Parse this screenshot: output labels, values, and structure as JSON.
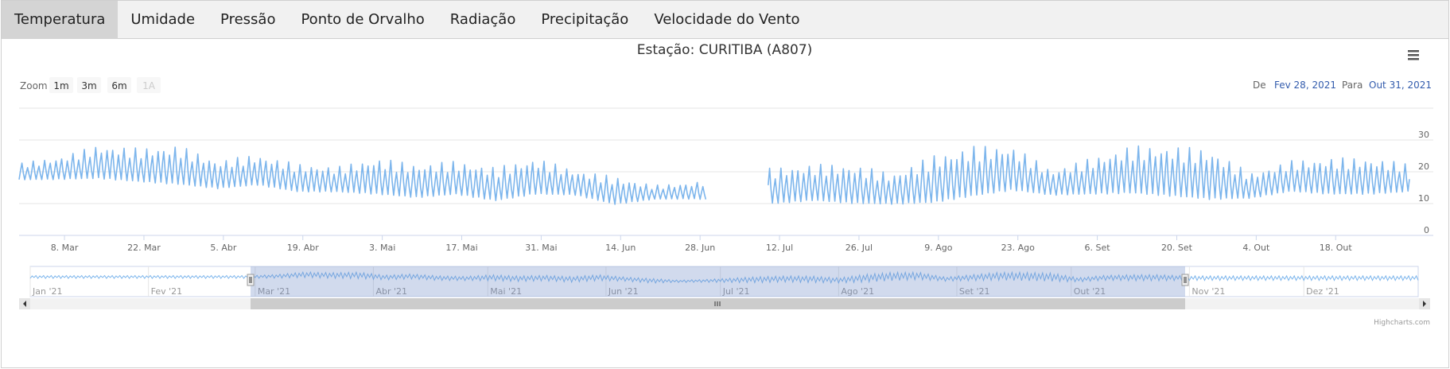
{
  "tabs": [
    "Temperatura",
    "Umidade",
    "Pressão",
    "Ponto de Orvalho",
    "Radiação",
    "Precipitação",
    "Velocidade do Vento"
  ],
  "active_tab": 0,
  "range_selector": {
    "zoom_label": "Zoom",
    "buttons": [
      "1m",
      "3m",
      "6m",
      "1A"
    ],
    "from_label": "De",
    "from_value": "Fev 28, 2021",
    "to_label": "Para",
    "to_value": "Out 31, 2021"
  },
  "credits": "Highcharts.com",
  "colors": {
    "series": "#7cb5ec",
    "navigator_mask": "rgba(102,133,194,0.3)"
  },
  "chart_data": {
    "type": "line",
    "title": "Estação: CURITIBA (A807)",
    "x_ticks": [
      "8. Mar",
      "22. Mar",
      "5. Abr",
      "19. Abr",
      "3. Mai",
      "17. Mai",
      "31. Mai",
      "14. Jun",
      "28. Jun",
      "12. Jul",
      "26. Jul",
      "9. Ago",
      "23. Ago",
      "6. Set",
      "20. Set",
      "4. Out",
      "18. Out"
    ],
    "y_ticks": [
      0,
      10,
      20,
      30
    ],
    "ylim": [
      0,
      40
    ],
    "xlim": [
      "2021-02-28",
      "2021-10-31"
    ],
    "navigator_ticks": [
      "Jan '21",
      "Fev '21",
      "Mar '21",
      "Abr '21",
      "Mai '21",
      "Jun '21",
      "Jul '21",
      "Ago '21",
      "Set '21",
      "Out '21",
      "Nov '21",
      "Dez '21"
    ],
    "gaps": [
      [
        "2021-06-29",
        "2021-07-10"
      ]
    ],
    "series": [
      {
        "x": [
          "2021-02-28",
          "2021-03-07",
          "2021-03-14",
          "2021-03-21",
          "2021-03-28",
          "2021-04-04",
          "2021-04-11",
          "2021-04-18",
          "2021-04-25",
          "2021-05-02",
          "2021-05-09",
          "2021-05-16",
          "2021-05-23",
          "2021-05-30",
          "2021-06-06",
          "2021-06-13",
          "2021-06-20",
          "2021-06-27",
          "2021-07-11",
          "2021-07-18",
          "2021-07-25",
          "2021-08-01",
          "2021-08-08",
          "2021-08-15",
          "2021-08-22",
          "2021-08-29",
          "2021-09-05",
          "2021-09-12",
          "2021-09-19",
          "2021-09-26",
          "2021-10-03",
          "2021-10-10",
          "2021-10-17",
          "2021-10-24",
          "2021-10-31"
        ],
        "y_min": [
          17,
          17,
          17,
          16,
          15,
          14,
          15,
          13,
          13,
          12,
          11,
          12,
          10,
          12,
          12,
          9,
          11,
          11,
          9,
          10,
          9,
          9,
          9,
          11,
          13,
          12,
          12,
          12,
          11,
          10,
          11,
          13,
          12,
          12,
          13
        ],
        "y_max": [
          23,
          25,
          29,
          28,
          29,
          24,
          26,
          23,
          22,
          25,
          23,
          24,
          22,
          25,
          21,
          19,
          16,
          17,
          22,
          23,
          23,
          20,
          26,
          29,
          29,
          21,
          25,
          29,
          29,
          28,
          20,
          24,
          25,
          25,
          23
        ]
      }
    ]
  }
}
